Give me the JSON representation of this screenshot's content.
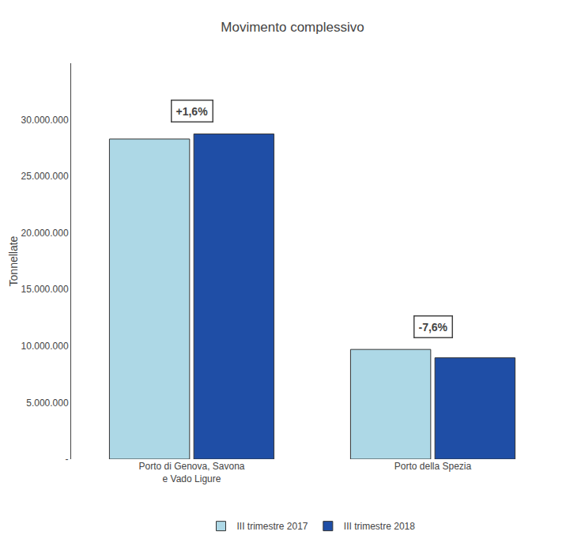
{
  "chart_data": {
    "type": "bar",
    "title": "Movimento complessivo",
    "ylabel": "Tonnellate",
    "categories": [
      "Porto di Genova, Savona\ne Vado Ligure",
      "Porto della Spezia"
    ],
    "series": [
      {
        "name": "III trimestre 2017",
        "color": "#ADD8E6",
        "values": [
          28300000,
          9700000
        ]
      },
      {
        "name": "III trimestre 2018",
        "color": "#1F4EA6",
        "values": [
          28750000,
          8960000
        ]
      }
    ],
    "annotations": [
      "+1,6%",
      "-7,6%"
    ],
    "ylim": [
      0,
      35000000
    ],
    "yticks": [
      {
        "value": 0,
        "label": "-"
      },
      {
        "value": 5000000,
        "label": "5.000.000"
      },
      {
        "value": 10000000,
        "label": "10.000.000"
      },
      {
        "value": 15000000,
        "label": "15.000.000"
      },
      {
        "value": 20000000,
        "label": "20.000.000"
      },
      {
        "value": 25000000,
        "label": "25.000.000"
      },
      {
        "value": 30000000,
        "label": "30.000.000"
      }
    ],
    "grid": false,
    "legend": "bottom"
  }
}
